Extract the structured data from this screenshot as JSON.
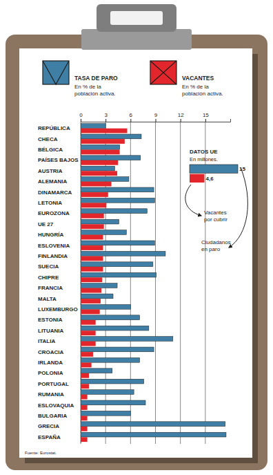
{
  "chart_data": [
    {
      "type": "bar",
      "orientation": "horizontal",
      "legend": "top",
      "grid": true,
      "categories": [
        "REPÚBLICA",
        "CHECA",
        "BÉLGICA",
        "PAÍSES BAJOS",
        "AUSTRIA",
        "ALEMANIA",
        "DINAMARCA",
        "LETONIA",
        "EUROZONA",
        "UE 27",
        "HUNGRÍA",
        "ESLOVENIA",
        "FINLANDIA",
        "SUECIA",
        "CHIPRE",
        "FRANCIA",
        "MALTA",
        "LUXEMBURGO",
        "ESTONIA",
        "LITUANIA",
        "ITALIA",
        "CROACIA",
        "IRLANDA",
        "POLONIA",
        "PORTUGAL",
        "RUMANIA",
        "ESLOVAQUIA",
        "BULGARIA",
        "GRECIA",
        "ESPAÑA"
      ],
      "series": [
        {
          "name": "TASA DE PARO",
          "color": "#3f7fa5",
          "values": [
            3.0,
            7.3,
            4.7,
            7.2,
            4.1,
            5.8,
            8.8,
            8.9,
            8.0,
            4.6,
            5.5,
            8.9,
            10.2,
            8.7,
            9.1,
            4.4,
            3.9,
            6.0,
            7.1,
            8.2,
            11.1,
            8.8,
            7.1,
            3.8,
            7.6,
            6.4,
            7.8,
            6.0,
            17.4,
            17.5
          ]
        },
        {
          "name": "VACANTES",
          "color": "#e3262b",
          "values": [
            5.6,
            5.3,
            4.7,
            4.5,
            4.4,
            3.7,
            3.3,
            3.1,
            2.8,
            2.8,
            2.7,
            2.7,
            2.7,
            2.7,
            2.6,
            2.5,
            2.4,
            2.3,
            1.8,
            1.8,
            1.8,
            1.5,
            1.3,
            1.0,
            1.0,
            0.8,
            0.8,
            0.8,
            0.8,
            0.8
          ]
        }
      ],
      "annotations": [
        "En % de la\npoblación activa.",
        "En % de la\npoblación activa."
      ],
      "xlim": [
        0,
        18
      ],
      "xticks": [
        0,
        3,
        6,
        9,
        12,
        15
      ],
      "source": "Fuente: Eurostat."
    },
    {
      "type": "bar",
      "orientation": "horizontal",
      "title": "DATOS UE",
      "subtitle": "En millones.",
      "categories": [
        "Ciudadanos\nen paro",
        "Vacantes\npor cubrir"
      ],
      "values": [
        15,
        4.6
      ],
      "value_labels": [
        "15",
        "4,6"
      ],
      "colors": [
        "#3f7fa5",
        "#e3262b"
      ],
      "xlim": [
        0,
        15
      ],
      "data_labels": true,
      "tick_labels": false
    }
  ]
}
